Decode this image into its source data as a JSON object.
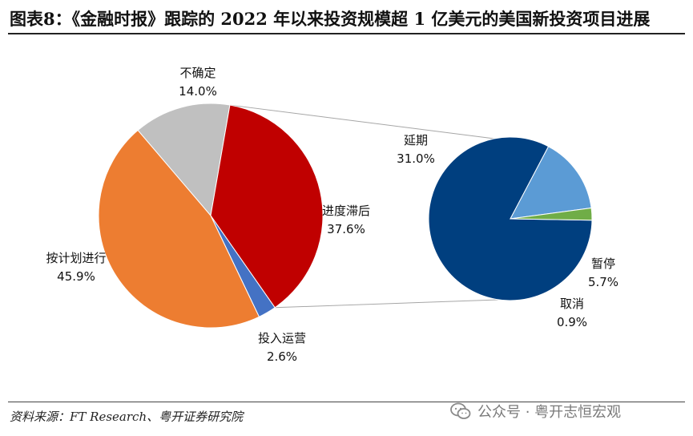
{
  "title": "图表8：《金融时报》跟踪的 2022 年以来投资规模超 1 亿美元的美国新投资项目进展",
  "source": "资料来源：FT Research、粤开证券研究院",
  "watermark": {
    "text": "公众号 · 粤开志恒宏观",
    "icon": "wechat-icon"
  },
  "chart_data": {
    "type": "pie",
    "title": "",
    "main_pie": {
      "slices": [
        {
          "label": "不确定",
          "value": 14.0,
          "display": "14.0%",
          "color": "#c0c0c0"
        },
        {
          "label": "进度滞后",
          "value": 37.6,
          "display": "37.6%",
          "color": "#c00000"
        },
        {
          "label": "投入运营",
          "value": 2.6,
          "display": "2.6%",
          "color": "#4472c4"
        },
        {
          "label": "按计划进行",
          "value": 45.9,
          "display": "45.9%",
          "color": "#ed7d31"
        }
      ]
    },
    "sub_pie": {
      "breakdown_of": "进度滞后",
      "slices": [
        {
          "label": "延期",
          "value": 31.0,
          "display": "31.0%",
          "color": "#003f7f"
        },
        {
          "label": "暂停",
          "value": 5.7,
          "display": "5.7%",
          "color": "#5b9bd5"
        },
        {
          "label": "取消",
          "value": 0.9,
          "display": "0.9%",
          "color": "#70ad47"
        }
      ]
    },
    "legend": "none"
  }
}
